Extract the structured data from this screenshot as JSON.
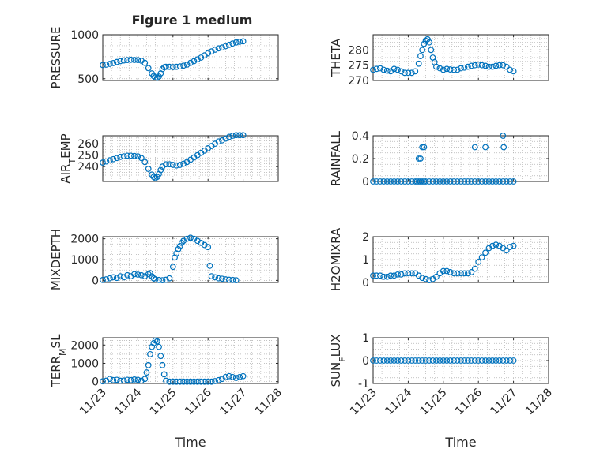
{
  "figure": {
    "title": "Figure 1 medium",
    "colors": {
      "marker": "#0072BD",
      "axis": "#262626",
      "grid": "#b0b0b0",
      "background": "#ffffff"
    }
  },
  "time_ticks": [
    "11/23",
    "11/24",
    "11/25",
    "11/26",
    "11/27",
    "11/28"
  ],
  "chart_data": [
    {
      "type": "scatter",
      "title": "Figure 1 medium",
      "ylabel": "PRESSURE",
      "xlabel": "",
      "xlim": [
        0,
        5
      ],
      "ylim": [
        480,
        1000
      ],
      "yticks": [
        500,
        1000
      ],
      "grid": true,
      "x": [
        0.0,
        0.1,
        0.2,
        0.3,
        0.4,
        0.5,
        0.6,
        0.7,
        0.8,
        0.9,
        1.0,
        1.1,
        1.2,
        1.3,
        1.4,
        1.45,
        1.5,
        1.55,
        1.6,
        1.65,
        1.7,
        1.75,
        1.8,
        1.9,
        2.0,
        2.1,
        2.2,
        2.3,
        2.4,
        2.5,
        2.6,
        2.7,
        2.8,
        2.9,
        3.0,
        3.1,
        3.2,
        3.3,
        3.4,
        3.5,
        3.6,
        3.7,
        3.8,
        3.9,
        4.0
      ],
      "values": [
        655,
        660,
        668,
        678,
        690,
        700,
        708,
        712,
        715,
        713,
        712,
        705,
        680,
        620,
        560,
        530,
        515,
        510,
        525,
        560,
        610,
        630,
        635,
        635,
        632,
        635,
        640,
        648,
        660,
        680,
        700,
        720,
        740,
        765,
        790,
        810,
        830,
        845,
        855,
        870,
        885,
        900,
        912,
        920,
        925
      ]
    },
    {
      "type": "scatter",
      "ylabel": "THETA",
      "xlabel": "",
      "xlim": [
        0,
        5
      ],
      "ylim": [
        270,
        285
      ],
      "yticks": [
        270,
        275,
        280
      ],
      "grid": true,
      "x": [
        0.0,
        0.1,
        0.2,
        0.3,
        0.4,
        0.5,
        0.6,
        0.7,
        0.8,
        0.9,
        1.0,
        1.1,
        1.2,
        1.3,
        1.35,
        1.4,
        1.45,
        1.5,
        1.55,
        1.6,
        1.65,
        1.7,
        1.75,
        1.8,
        1.9,
        2.0,
        2.1,
        2.2,
        2.3,
        2.4,
        2.5,
        2.6,
        2.7,
        2.8,
        2.9,
        3.0,
        3.1,
        3.2,
        3.3,
        3.4,
        3.5,
        3.6,
        3.7,
        3.8,
        3.9,
        4.0
      ],
      "values": [
        273.5,
        273.8,
        274.0,
        273.5,
        273.2,
        273.0,
        273.8,
        273.5,
        273.0,
        272.5,
        272.5,
        272.5,
        273.0,
        275.5,
        278.0,
        280.0,
        282.0,
        283.0,
        283.5,
        282.5,
        280.0,
        277.5,
        276.0,
        274.5,
        274.0,
        273.5,
        273.8,
        273.6,
        273.5,
        273.5,
        274.0,
        274.2,
        274.5,
        274.8,
        275.0,
        275.2,
        275.0,
        274.8,
        274.5,
        274.5,
        274.8,
        275.0,
        275.0,
        274.5,
        273.5,
        273.0
      ]
    },
    {
      "type": "scatter",
      "ylabel": "AIR_TEMP",
      "xlabel": "",
      "xlim": [
        0,
        5
      ],
      "ylim": [
        227,
        267
      ],
      "yticks": [
        240,
        250,
        260
      ],
      "grid": true,
      "x": [
        0.0,
        0.1,
        0.2,
        0.3,
        0.4,
        0.5,
        0.6,
        0.7,
        0.8,
        0.9,
        1.0,
        1.1,
        1.2,
        1.3,
        1.4,
        1.45,
        1.5,
        1.55,
        1.6,
        1.65,
        1.7,
        1.8,
        1.9,
        2.0,
        2.1,
        2.2,
        2.3,
        2.4,
        2.5,
        2.6,
        2.7,
        2.8,
        2.9,
        3.0,
        3.1,
        3.2,
        3.3,
        3.4,
        3.5,
        3.6,
        3.7,
        3.8,
        3.9,
        4.0
      ],
      "values": [
        243.5,
        244.5,
        245.5,
        246.5,
        247.5,
        248.5,
        249.0,
        249.5,
        249.5,
        249.3,
        249.0,
        247.5,
        244.0,
        238.0,
        233.0,
        231.0,
        230.0,
        231.0,
        233.5,
        237.0,
        240.0,
        242.0,
        242.0,
        241.5,
        241.0,
        241.5,
        242.5,
        244.0,
        246.0,
        248.0,
        250.0,
        252.0,
        254.0,
        256.0,
        258.0,
        260.0,
        262.0,
        263.0,
        264.5,
        266.0,
        267.0,
        267.5,
        267.5,
        267.5
      ]
    },
    {
      "type": "scatter",
      "ylabel": "RAINFALL",
      "xlabel": "",
      "xlim": [
        0,
        5
      ],
      "ylim": [
        0,
        0.4
      ],
      "yticks": [
        0,
        0.2,
        0.4
      ],
      "grid": true,
      "x": [
        0.0,
        0.1,
        0.2,
        0.3,
        0.4,
        0.5,
        0.6,
        0.7,
        0.8,
        0.9,
        1.0,
        1.1,
        1.2,
        1.25,
        1.3,
        1.35,
        1.4,
        1.45,
        1.5,
        1.6,
        1.7,
        1.8,
        1.9,
        2.0,
        2.1,
        2.2,
        2.3,
        2.4,
        2.5,
        2.6,
        2.7,
        2.8,
        2.9,
        3.0,
        3.1,
        3.2,
        3.3,
        3.4,
        3.5,
        3.6,
        3.7,
        3.8,
        3.9,
        4.0,
        1.3,
        1.35,
        1.4,
        1.45,
        2.9,
        3.2,
        3.7,
        3.72
      ],
      "values": [
        0,
        0,
        0,
        0,
        0,
        0,
        0,
        0,
        0,
        0,
        0,
        0,
        0,
        0,
        0,
        0,
        0,
        0,
        0,
        0,
        0,
        0,
        0,
        0,
        0,
        0,
        0,
        0,
        0,
        0,
        0,
        0,
        0,
        0,
        0,
        0,
        0,
        0,
        0,
        0,
        0,
        0,
        0,
        0,
        0.2,
        0.2,
        0.3,
        0.3,
        0.3,
        0.3,
        0.4,
        0.3
      ]
    },
    {
      "type": "scatter",
      "ylabel": "MIXDEPTH",
      "xlabel": "",
      "xlim": [
        0,
        5
      ],
      "ylim": [
        -100,
        2100
      ],
      "yticks": [
        0,
        1000,
        2000
      ],
      "grid": true,
      "x": [
        0.0,
        0.1,
        0.2,
        0.3,
        0.4,
        0.5,
        0.6,
        0.7,
        0.8,
        0.9,
        1.0,
        1.1,
        1.2,
        1.3,
        1.35,
        1.4,
        1.45,
        1.5,
        1.6,
        1.7,
        1.8,
        1.9,
        2.0,
        2.05,
        2.1,
        2.15,
        2.2,
        2.25,
        2.3,
        2.4,
        2.5,
        2.6,
        2.7,
        2.8,
        2.9,
        3.0,
        3.05,
        3.1,
        3.2,
        3.3,
        3.4,
        3.5,
        3.6,
        3.7,
        3.8
      ],
      "values": [
        20,
        50,
        100,
        150,
        120,
        200,
        150,
        250,
        200,
        300,
        280,
        250,
        200,
        300,
        350,
        200,
        100,
        50,
        20,
        10,
        30,
        100,
        650,
        1100,
        1300,
        1500,
        1650,
        1800,
        1900,
        2000,
        2050,
        2000,
        1900,
        1800,
        1700,
        1600,
        700,
        200,
        150,
        100,
        80,
        50,
        30,
        20,
        10
      ]
    },
    {
      "type": "scatter",
      "ylabel": "H2OMIXRA",
      "xlabel": "",
      "xlim": [
        0,
        5
      ],
      "ylim": [
        0,
        2
      ],
      "yticks": [
        0,
        1,
        2
      ],
      "grid": true,
      "x": [
        0.0,
        0.1,
        0.2,
        0.3,
        0.4,
        0.5,
        0.6,
        0.7,
        0.8,
        0.9,
        1.0,
        1.1,
        1.2,
        1.3,
        1.4,
        1.5,
        1.6,
        1.7,
        1.8,
        1.9,
        2.0,
        2.1,
        2.2,
        2.3,
        2.4,
        2.5,
        2.6,
        2.7,
        2.8,
        2.9,
        3.0,
        3.1,
        3.2,
        3.3,
        3.4,
        3.5,
        3.6,
        3.7,
        3.8,
        3.9,
        4.0
      ],
      "values": [
        0.3,
        0.3,
        0.3,
        0.25,
        0.25,
        0.3,
        0.3,
        0.35,
        0.35,
        0.4,
        0.4,
        0.4,
        0.4,
        0.3,
        0.2,
        0.15,
        0.1,
        0.15,
        0.25,
        0.4,
        0.5,
        0.5,
        0.45,
        0.4,
        0.4,
        0.4,
        0.4,
        0.4,
        0.45,
        0.6,
        0.9,
        1.1,
        1.3,
        1.5,
        1.6,
        1.65,
        1.6,
        1.5,
        1.4,
        1.55,
        1.6
      ]
    },
    {
      "type": "scatter",
      "ylabel": "TERR_MSL",
      "xlabel": "Time",
      "xlim": [
        0,
        5
      ],
      "ylim": [
        -100,
        2400
      ],
      "yticks": [
        0,
        1000,
        2000
      ],
      "grid": true,
      "x": [
        0.0,
        0.1,
        0.2,
        0.3,
        0.4,
        0.5,
        0.6,
        0.7,
        0.8,
        0.9,
        1.0,
        1.1,
        1.2,
        1.25,
        1.3,
        1.35,
        1.4,
        1.45,
        1.5,
        1.55,
        1.6,
        1.65,
        1.7,
        1.75,
        1.8,
        1.9,
        2.0,
        2.1,
        2.2,
        2.3,
        2.4,
        2.5,
        2.6,
        2.7,
        2.8,
        2.9,
        3.0,
        3.1,
        3.2,
        3.3,
        3.4,
        3.5,
        3.6,
        3.7,
        3.8,
        3.9,
        4.0
      ],
      "values": [
        20,
        50,
        150,
        80,
        100,
        50,
        60,
        100,
        80,
        120,
        100,
        50,
        150,
        500,
        900,
        1500,
        1900,
        2100,
        2250,
        2200,
        1900,
        1400,
        900,
        400,
        50,
        0,
        0,
        0,
        0,
        0,
        0,
        0,
        0,
        0,
        0,
        0,
        0,
        0,
        30,
        80,
        150,
        250,
        300,
        250,
        200,
        250,
        300
      ]
    },
    {
      "type": "scatter",
      "ylabel": "SUN_FLUX",
      "xlabel": "Time",
      "xlim": [
        0,
        5
      ],
      "ylim": [
        -1,
        1
      ],
      "yticks": [
        -1,
        0,
        1
      ],
      "grid": true,
      "x": [
        0.0,
        0.1,
        0.2,
        0.3,
        0.4,
        0.5,
        0.6,
        0.7,
        0.8,
        0.9,
        1.0,
        1.1,
        1.2,
        1.3,
        1.4,
        1.5,
        1.6,
        1.7,
        1.8,
        1.9,
        2.0,
        2.1,
        2.2,
        2.3,
        2.4,
        2.5,
        2.6,
        2.7,
        2.8,
        2.9,
        3.0,
        3.1,
        3.2,
        3.3,
        3.4,
        3.5,
        3.6,
        3.7,
        3.8,
        3.9,
        4.0
      ],
      "values": [
        0,
        0,
        0,
        0,
        0,
        0,
        0,
        0,
        0,
        0,
        0,
        0,
        0,
        0,
        0,
        0,
        0,
        0,
        0,
        0,
        0,
        0,
        0,
        0,
        0,
        0,
        0,
        0,
        0,
        0,
        0,
        0,
        0,
        0,
        0,
        0,
        0,
        0,
        0,
        0,
        0
      ]
    }
  ]
}
